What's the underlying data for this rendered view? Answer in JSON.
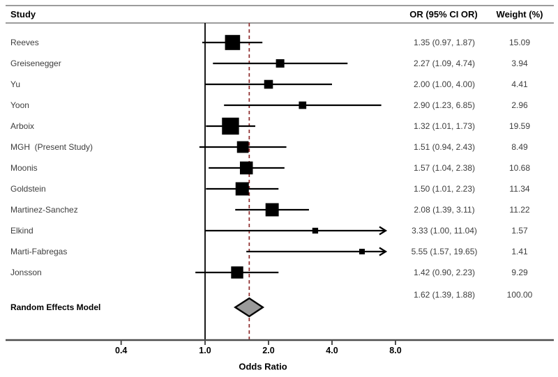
{
  "header": {
    "study": "Study",
    "or_ci": "OR (95% CI OR)",
    "weight": "Weight (%)"
  },
  "chart_data": {
    "type": "forest",
    "title": "",
    "xlabel": "Odds Ratio",
    "x_scale": "log",
    "x_ticks": [
      "0.4",
      "1.0",
      "2.0",
      "4.0",
      "8.0"
    ],
    "x_tick_values": [
      0.4,
      1.0,
      2.0,
      4.0,
      8.0
    ],
    "reference_or": 1.0,
    "pooled_or": 1.62,
    "studies": [
      {
        "label": "Reeves",
        "or": 1.35,
        "ci_low": 0.97,
        "ci_high": 1.87,
        "or_text": "1.35 (0.97, 1.87)",
        "weight": 15.09,
        "weight_text": "15.09"
      },
      {
        "label": "Greisenegger",
        "or": 2.27,
        "ci_low": 1.09,
        "ci_high": 4.74,
        "or_text": "2.27 (1.09, 4.74)",
        "weight": 3.94,
        "weight_text": "3.94"
      },
      {
        "label": "Yu",
        "or": 2.0,
        "ci_low": 1.0,
        "ci_high": 4.0,
        "or_text": "2.00 (1.00, 4.00)",
        "weight": 4.41,
        "weight_text": "4.41"
      },
      {
        "label": "Yoon",
        "or": 2.9,
        "ci_low": 1.23,
        "ci_high": 6.85,
        "or_text": "2.90 (1.23, 6.85)",
        "weight": 2.96,
        "weight_text": "2.96"
      },
      {
        "label": "Arboix",
        "or": 1.32,
        "ci_low": 1.01,
        "ci_high": 1.73,
        "or_text": "1.32 (1.01, 1.73)",
        "weight": 19.59,
        "weight_text": "19.59"
      },
      {
        "label": "MGH  (Present Study)",
        "or": 1.51,
        "ci_low": 0.94,
        "ci_high": 2.43,
        "or_text": "1.51 (0.94, 2.43)",
        "weight": 8.49,
        "weight_text": "8.49"
      },
      {
        "label": "Moonis",
        "or": 1.57,
        "ci_low": 1.04,
        "ci_high": 2.38,
        "or_text": "1.57 (1.04, 2.38)",
        "weight": 10.68,
        "weight_text": "10.68"
      },
      {
        "label": "Goldstein",
        "or": 1.5,
        "ci_low": 1.01,
        "ci_high": 2.23,
        "or_text": "1.50 (1.01, 2.23)",
        "weight": 11.34,
        "weight_text": "11.34"
      },
      {
        "label": "Martinez-Sanchez",
        "or": 2.08,
        "ci_low": 1.39,
        "ci_high": 3.11,
        "or_text": "2.08 (1.39, 3.11)",
        "weight": 11.22,
        "weight_text": "11.22"
      },
      {
        "label": "Elkind",
        "or": 3.33,
        "ci_low": 1.0,
        "ci_high": 11.04,
        "or_text": "3.33 (1.00, 11.04)",
        "weight": 1.57,
        "weight_text": "1.57"
      },
      {
        "label": "Marti-Fabregas",
        "or": 5.55,
        "ci_low": 1.57,
        "ci_high": 19.65,
        "or_text": "5.55 (1.57, 19.65)",
        "weight": 1.41,
        "weight_text": "1.41"
      },
      {
        "label": "Jonsson",
        "or": 1.42,
        "ci_low": 0.9,
        "ci_high": 2.23,
        "or_text": "1.42 (0.90, 2.23)",
        "weight": 9.29,
        "weight_text": "9.29"
      }
    ],
    "summary": {
      "label": "Random Effects Model",
      "or": 1.62,
      "ci_low": 1.39,
      "ci_high": 1.88,
      "or_text": "1.62 (1.39, 1.88)",
      "weight": 100.0,
      "weight_text": "100.00"
    }
  },
  "colors": {
    "marker": "#000000",
    "ci_line": "#000000",
    "reference_line": "#000000",
    "pooled_line": "#8e2a2a",
    "diamond_fill": "#9a9a9a",
    "diamond_stroke": "#000000",
    "rule": "#9c9c9c",
    "axis": "#4d4d4d",
    "label_text": "#3d3d3d",
    "header_text": "#000000"
  }
}
